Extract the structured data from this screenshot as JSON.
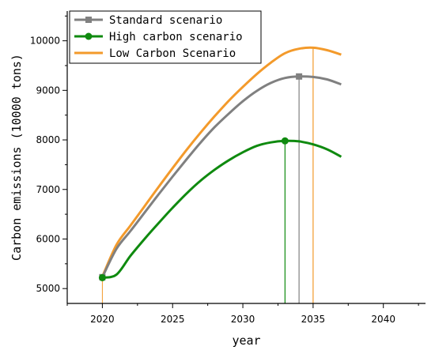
{
  "chart_data": {
    "type": "line",
    "xlabel": "year",
    "ylabel": "Carbon emissions (10000 tons)",
    "xlim": [
      2017.5,
      2043
    ],
    "ylim": [
      4700,
      10600
    ],
    "x_ticks": [
      2020,
      2025,
      2030,
      2035,
      2040
    ],
    "y_ticks": [
      5000,
      6000,
      7000,
      8000,
      9000,
      10000
    ],
    "grid": false,
    "legend_position": "top-left",
    "series": [
      {
        "name": "Standard scenario",
        "color": "#808080",
        "marker": "square",
        "x": [
          2020,
          2021,
          2022,
          2023,
          2024,
          2025,
          2026,
          2027,
          2028,
          2029,
          2030,
          2031,
          2032,
          2033,
          2034,
          2035,
          2036,
          2037
        ],
        "y": [
          5230,
          5800,
          6160,
          6530,
          6900,
          7260,
          7610,
          7950,
          8260,
          8530,
          8780,
          8990,
          9150,
          9250,
          9280,
          9270,
          9220,
          9120
        ],
        "peak": {
          "x": 2034,
          "y": 9280
        }
      },
      {
        "name": "High carbon scenario",
        "color": "#0f8a0f",
        "marker": "circle",
        "x": [
          2020,
          2021,
          2022,
          2023,
          2024,
          2025,
          2026,
          2027,
          2028,
          2029,
          2030,
          2031,
          2032,
          2033,
          2034,
          2035,
          2036,
          2037
        ],
        "y": [
          5220,
          5280,
          5660,
          6000,
          6320,
          6630,
          6920,
          7180,
          7400,
          7590,
          7750,
          7880,
          7950,
          7980,
          7970,
          7910,
          7810,
          7660
        ],
        "peak": {
          "x": 2033,
          "y": 7980
        }
      },
      {
        "name": "Low Carbon Scenario",
        "color": "#f39a2b",
        "marker": "none",
        "x": [
          2020,
          2021,
          2022,
          2023,
          2024,
          2025,
          2026,
          2027,
          2028,
          2029,
          2030,
          2031,
          2032,
          2033,
          2034,
          2035,
          2036,
          2037
        ],
        "y": [
          5240,
          5880,
          6270,
          6660,
          7050,
          7430,
          7800,
          8150,
          8480,
          8790,
          9070,
          9330,
          9560,
          9750,
          9840,
          9860,
          9810,
          9720
        ],
        "peak": {
          "x": 2035,
          "y": 9860
        }
      }
    ]
  }
}
